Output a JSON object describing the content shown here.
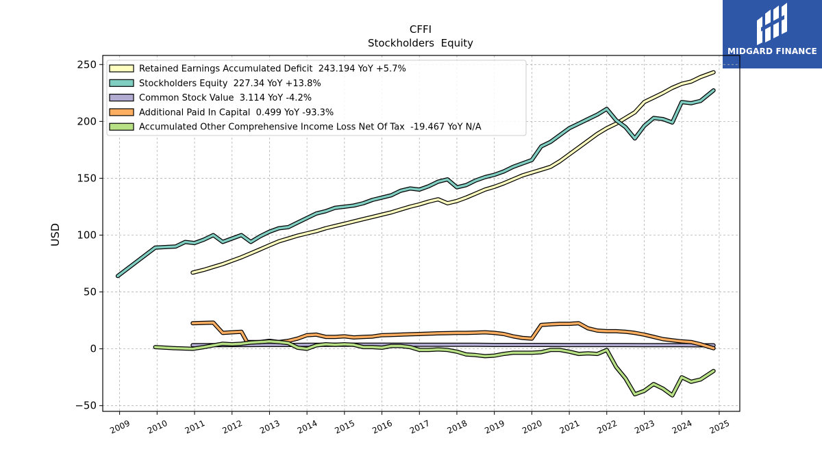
{
  "brand": {
    "name": "MIDGARD FINANCE",
    "color": "#2f57a8"
  },
  "chart_data": {
    "type": "line",
    "title": "CFFI",
    "subtitle": "Stockholders  Equity",
    "xlabel": "",
    "ylabel": "USD",
    "xlim": [
      2008.55,
      2025.55
    ],
    "ylim": [
      -55,
      258
    ],
    "xticks": [
      "2009",
      "2010",
      "2011",
      "2012",
      "2013",
      "2014",
      "2015",
      "2016",
      "2017",
      "2018",
      "2019",
      "2020",
      "2021",
      "2022",
      "2023",
      "2024",
      "2025"
    ],
    "yticks": [
      -50,
      0,
      50,
      100,
      150,
      200,
      250
    ],
    "grid": true,
    "legend_position": "upper-left",
    "series": [
      {
        "name": "Retained Earnings Accumulated Deficit  243.194 YoY +5.7%",
        "color": "#ffffbf",
        "x": [
          2010.95,
          2011.25,
          2011.5,
          2011.75,
          2012.0,
          2012.25,
          2012.5,
          2012.75,
          2013.0,
          2013.25,
          2013.5,
          2013.75,
          2014.0,
          2014.25,
          2014.5,
          2014.75,
          2015.0,
          2015.25,
          2015.5,
          2015.75,
          2016.0,
          2016.25,
          2016.5,
          2016.75,
          2017.0,
          2017.25,
          2017.5,
          2017.75,
          2018.0,
          2018.25,
          2018.5,
          2018.75,
          2019.0,
          2019.25,
          2019.5,
          2019.75,
          2020.0,
          2020.25,
          2020.5,
          2020.75,
          2021.0,
          2021.25,
          2021.5,
          2021.75,
          2022.0,
          2022.25,
          2022.5,
          2022.75,
          2023.0,
          2023.25,
          2023.5,
          2023.75,
          2024.0,
          2024.25,
          2024.5,
          2024.85
        ],
        "y": [
          67,
          69.5,
          72,
          74.5,
          77.5,
          80.5,
          84,
          87.5,
          91,
          94.5,
          97,
          99.5,
          101.5,
          103.5,
          106,
          108,
          110,
          112,
          114,
          116,
          118,
          120,
          122.5,
          125,
          127,
          129.5,
          131.5,
          128,
          130,
          133,
          136.5,
          140,
          142.5,
          145.5,
          149,
          152.5,
          155,
          157.5,
          160,
          165,
          171,
          177,
          183,
          189,
          194,
          198,
          203,
          208,
          217,
          221,
          225,
          229.5,
          233,
          235,
          239,
          243.2
        ]
      },
      {
        "name": "Stockholders Equity  227.34 YoY +13.8%",
        "color": "#80cdc1",
        "x": [
          2008.95,
          2009.95,
          2010.5,
          2010.75,
          2011.0,
          2011.25,
          2011.5,
          2011.75,
          2012.0,
          2012.25,
          2012.5,
          2012.75,
          2013.0,
          2013.25,
          2013.5,
          2013.75,
          2014.0,
          2014.25,
          2014.5,
          2014.75,
          2015.0,
          2015.25,
          2015.5,
          2015.75,
          2016.0,
          2016.25,
          2016.5,
          2016.75,
          2017.0,
          2017.25,
          2017.5,
          2017.75,
          2018.0,
          2018.25,
          2018.5,
          2018.75,
          2019.0,
          2019.25,
          2019.5,
          2019.75,
          2020.0,
          2020.25,
          2020.5,
          2020.75,
          2021.0,
          2021.25,
          2021.5,
          2021.75,
          2022.0,
          2022.25,
          2022.5,
          2022.75,
          2023.0,
          2023.25,
          2023.5,
          2023.75,
          2024.0,
          2024.25,
          2024.5,
          2024.85
        ],
        "y": [
          64,
          89,
          90,
          94,
          93,
          96,
          100,
          94,
          97,
          100,
          94,
          99,
          103,
          106,
          107,
          111,
          115,
          119,
          121,
          124,
          125,
          126,
          128,
          131,
          133,
          135,
          139,
          141,
          140,
          143,
          147,
          149,
          142,
          144,
          148,
          151,
          153,
          156,
          160,
          163,
          166,
          178,
          182,
          188,
          194,
          198,
          202,
          206,
          211,
          201,
          195,
          185,
          196,
          203,
          202,
          199,
          217,
          216,
          218,
          227.3
        ]
      },
      {
        "name": "Common Stock Value  3.114 YoY -4.2%",
        "color": "#b2abd2",
        "x": [
          2010.95,
          2011.5,
          2012.0,
          2012.5,
          2013.0,
          2013.5,
          2014.0,
          2014.5,
          2015.0,
          2015.5,
          2016.0,
          2016.5,
          2017.0,
          2017.5,
          2018.0,
          2018.5,
          2019.0,
          2019.5,
          2020.0,
          2020.5,
          2021.0,
          2021.5,
          2022.0,
          2022.5,
          2023.0,
          2023.5,
          2024.0,
          2024.5,
          2024.85
        ],
        "y": [
          3.2,
          3.2,
          3.3,
          3.3,
          3.4,
          3.4,
          3.5,
          3.5,
          3.6,
          3.6,
          3.6,
          3.6,
          3.5,
          3.5,
          3.5,
          3.5,
          3.4,
          3.4,
          3.4,
          3.4,
          3.3,
          3.3,
          3.3,
          3.3,
          3.2,
          3.2,
          3.2,
          3.1,
          3.1
        ]
      },
      {
        "name": "Additional Paid In Capital  0.499 YoY -93.3%",
        "color": "#fdae61",
        "x": [
          2010.95,
          2011.25,
          2011.5,
          2011.75,
          2012.0,
          2012.25,
          2012.4,
          2012.75,
          2013.0,
          2013.25,
          2013.5,
          2013.75,
          2014.0,
          2014.25,
          2014.5,
          2014.75,
          2015.0,
          2015.25,
          2015.5,
          2015.75,
          2016.0,
          2016.25,
          2016.5,
          2016.75,
          2017.0,
          2017.25,
          2017.5,
          2017.75,
          2018.0,
          2018.25,
          2018.5,
          2018.75,
          2019.0,
          2019.25,
          2019.5,
          2019.75,
          2020.0,
          2020.25,
          2020.5,
          2020.75,
          2021.0,
          2021.25,
          2021.5,
          2021.75,
          2022.0,
          2022.25,
          2022.5,
          2022.75,
          2023.0,
          2023.25,
          2023.5,
          2023.75,
          2024.0,
          2024.25,
          2024.5,
          2024.85
        ],
        "y": [
          22.5,
          22.8,
          23,
          14,
          14.5,
          15,
          6,
          6,
          7,
          6,
          7,
          9,
          12,
          12.5,
          10.5,
          10.5,
          11,
          10,
          10.5,
          10.8,
          12,
          12.2,
          12.5,
          12.8,
          13,
          13.3,
          13.6,
          13.8,
          14,
          14,
          14.2,
          14.5,
          14,
          13,
          11,
          9.5,
          9,
          21,
          21.5,
          22,
          22,
          22.5,
          18,
          16,
          15.5,
          15.5,
          15,
          14,
          12.5,
          10.5,
          8.5,
          7.5,
          6.5,
          6,
          4,
          0.5
        ]
      },
      {
        "name": "Accumulated Other Comprehensive Income Loss Net Of Tax  -19.467 YoY N/A",
        "color": "#b8e186",
        "x": [
          2009.95,
          2010.5,
          2010.95,
          2011.25,
          2011.5,
          2011.75,
          2012.0,
          2012.25,
          2012.5,
          2012.75,
          2013.0,
          2013.25,
          2013.5,
          2013.75,
          2014.0,
          2014.25,
          2014.5,
          2014.75,
          2015.0,
          2015.25,
          2015.5,
          2015.75,
          2016.0,
          2016.25,
          2016.5,
          2016.75,
          2017.0,
          2017.25,
          2017.5,
          2017.75,
          2018.0,
          2018.25,
          2018.5,
          2018.75,
          2019.0,
          2019.25,
          2019.5,
          2019.75,
          2020.0,
          2020.25,
          2020.5,
          2020.75,
          2021.0,
          2021.25,
          2021.5,
          2021.75,
          2022.0,
          2022.25,
          2022.5,
          2022.75,
          2023.0,
          2023.25,
          2023.5,
          2023.75,
          2024.0,
          2024.25,
          2024.5,
          2024.85
        ],
        "y": [
          1.5,
          0.5,
          0,
          1.5,
          3,
          4.5,
          4,
          4.5,
          5.5,
          6,
          6.5,
          6,
          5,
          1,
          0,
          3,
          4,
          3.5,
          4,
          3.5,
          1.5,
          1.5,
          1,
          2.5,
          2.5,
          1.5,
          -1,
          -1,
          -0.5,
          -1,
          -2.5,
          -5,
          -5.5,
          -6.5,
          -6,
          -4.5,
          -3.5,
          -3.5,
          -3.5,
          -3,
          -1,
          -1,
          -2.5,
          -4.5,
          -4,
          -4.5,
          -1,
          -16,
          -26,
          -40,
          -37,
          -31,
          -35,
          -41,
          -25,
          -29,
          -27,
          -19.5
        ]
      }
    ]
  }
}
